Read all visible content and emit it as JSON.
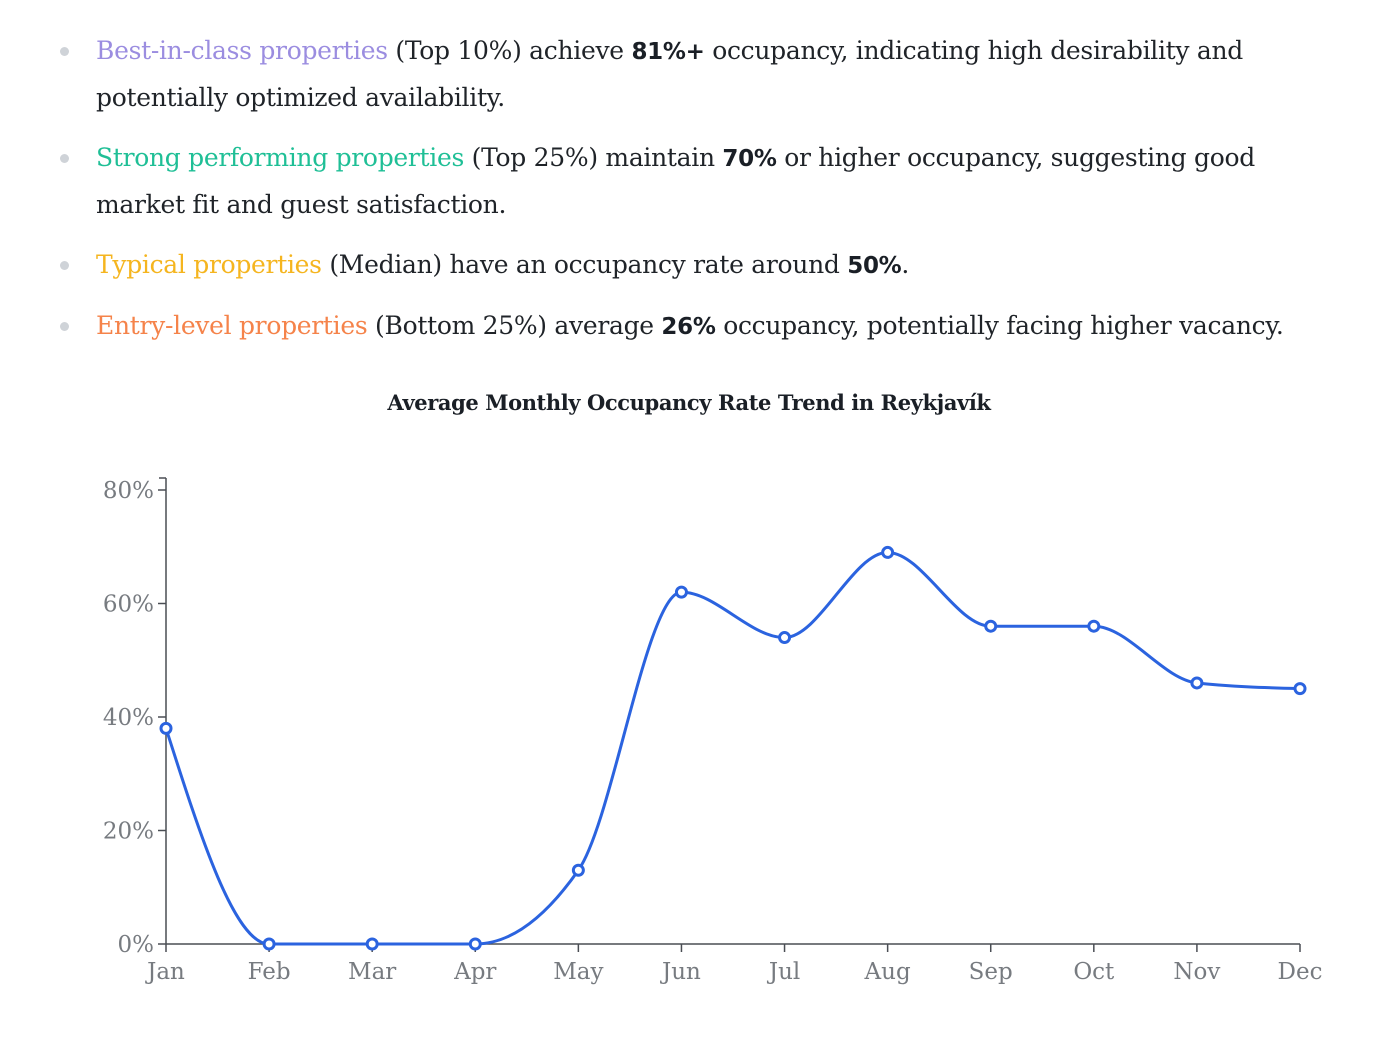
{
  "bullets": [
    {
      "highlight": "Best-in-class properties",
      "color": "#9b8de0",
      "pre": " (Top 10%) achieve ",
      "value": "81%+",
      "post": " occupancy, indicating high desirability and potentially optimized availability."
    },
    {
      "highlight": "Strong performing properties",
      "color": "#1fbf96",
      "pre": " (Top 25%) maintain ",
      "value": "70%",
      "post": " or higher occupancy, suggesting good market fit and guest satisfaction."
    },
    {
      "highlight": "Typical properties",
      "color": "#f5b51f",
      "pre": " (Median) have an occupancy rate around ",
      "value": "50%",
      "post": "."
    },
    {
      "highlight": "Entry-level properties",
      "color": "#f5834a",
      "pre": " (Bottom 25%) average ",
      "value": "26%",
      "post": " occupancy, potentially facing higher vacancy."
    }
  ],
  "chart_data": {
    "type": "line",
    "title": "Average Monthly Occupancy Rate Trend in Reykjavík",
    "xlabel": "",
    "ylabel": "",
    "categories": [
      "Jan",
      "Feb",
      "Mar",
      "Apr",
      "May",
      "Jun",
      "Jul",
      "Aug",
      "Sep",
      "Oct",
      "Nov",
      "Dec"
    ],
    "series": [
      {
        "values": [
          38,
          0,
          0,
          0,
          13,
          62,
          54,
          69,
          56,
          56,
          46,
          45
        ],
        "color": "#2b63df"
      }
    ],
    "ylim": [
      0,
      80
    ],
    "yticks": [
      "0%",
      "20%",
      "40%",
      "60%",
      "80%"
    ],
    "ytick_values": [
      0,
      20,
      40,
      60,
      80
    ],
    "grid": false,
    "legend": "none"
  }
}
